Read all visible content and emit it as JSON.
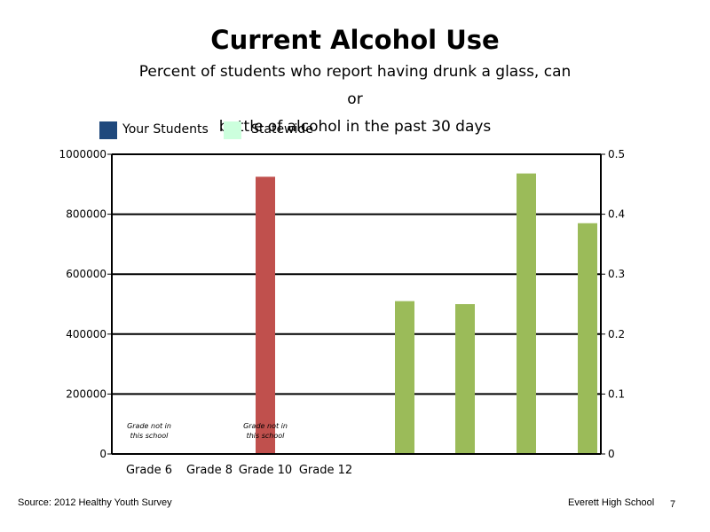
{
  "title": "Current Alcohol Use",
  "subtitle_line1": "Percent of students who report having drunk a glass, can or",
  "subtitle_line2": "bottle of alcohol in the past 30 days",
  "legend": [
    {
      "label": "Your Students",
      "color": "#1f497d"
    },
    {
      "label": "Statewide",
      "color": "#ccffdd"
    }
  ],
  "footer": {
    "source": "Source: 2012 Healthy Youth Survey",
    "school": "Everett High School",
    "page": "7"
  },
  "chart_data": {
    "type": "bar",
    "categories": [
      "Grade 6",
      "Grade 8",
      "Grade 10",
      "Grade 12"
    ],
    "left_axis": {
      "ylim": [
        0,
        1000000
      ],
      "ticks": [
        0,
        200000,
        400000,
        600000,
        800000,
        1000000
      ]
    },
    "right_axis": {
      "ylim": [
        0,
        0.5
      ],
      "ticks": [
        "0",
        "0.1",
        "0.2",
        "0.3",
        "0.4",
        "0.5"
      ]
    },
    "grid": true,
    "legend_position": "top-left",
    "series": [
      {
        "axis": "left",
        "color": "#c0504d",
        "values": [
          null,
          null,
          925000,
          null
        ]
      },
      {
        "axis": "right",
        "color": "#9bbb59",
        "values": [
          0.255,
          0.25,
          0.468,
          0.385
        ]
      }
    ],
    "annotations": [
      {
        "category": "Grade 6",
        "line1": "Grade not in",
        "line2": "this school"
      },
      {
        "category": "Grade 10",
        "line1": "Grade not in",
        "line2": "this school"
      }
    ]
  }
}
